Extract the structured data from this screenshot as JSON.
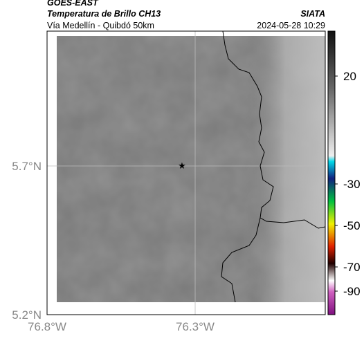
{
  "header": {
    "satellite": "GOES-EAST",
    "product": "Temperatura de Brillo CH13",
    "location": "Vía Medellín - Quibdó 50km",
    "source": "SIATA",
    "datetime": "2024-05-28 10:29"
  },
  "map": {
    "lat_labels": [
      "5.7°N",
      "5.2°N"
    ],
    "lon_labels": [
      "76.8°W",
      "76.3°W"
    ]
  },
  "colorbar": {
    "labels": [
      "20",
      "-30",
      "-50",
      "-70",
      "-90"
    ]
  }
}
